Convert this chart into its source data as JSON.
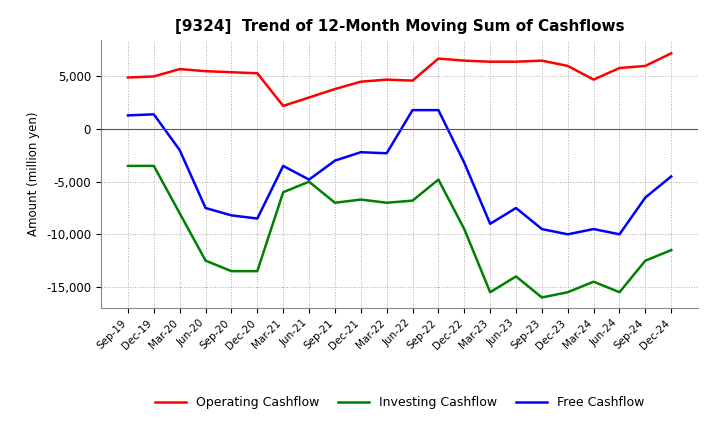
{
  "title": "[9324]  Trend of 12-Month Moving Sum of Cashflows",
  "ylabel": "Amount (million yen)",
  "ylim": [
    -17000,
    8500
  ],
  "yticks": [
    -15000,
    -10000,
    -5000,
    0,
    5000
  ],
  "background_color": "#ffffff",
  "grid_color": "#aaaaaa",
  "x_labels": [
    "Sep-19",
    "Dec-19",
    "Mar-20",
    "Jun-20",
    "Sep-20",
    "Dec-20",
    "Mar-21",
    "Jun-21",
    "Sep-21",
    "Dec-21",
    "Mar-22",
    "Jun-22",
    "Sep-22",
    "Dec-22",
    "Mar-23",
    "Jun-23",
    "Sep-23",
    "Dec-23",
    "Mar-24",
    "Jun-24",
    "Sep-24",
    "Dec-24"
  ],
  "operating_cashflow": [
    4900,
    5000,
    5700,
    5500,
    5400,
    5300,
    2200,
    3000,
    3800,
    4500,
    4700,
    4600,
    6700,
    6500,
    6400,
    6400,
    6500,
    6000,
    4700,
    5800,
    6000,
    7200
  ],
  "investing_cashflow": [
    -3500,
    -3500,
    -8000,
    -12500,
    -13500,
    -13500,
    -6000,
    -5000,
    -7000,
    -6700,
    -7000,
    -6800,
    -4800,
    -9500,
    -15500,
    -14000,
    -16000,
    -15500,
    -14500,
    -15500,
    -12500,
    -11500
  ],
  "free_cashflow": [
    1300,
    1400,
    -2000,
    -7500,
    -8200,
    -8500,
    -3500,
    -4800,
    -3000,
    -2200,
    -2300,
    1800,
    1800,
    -3200,
    -9000,
    -7500,
    -9500,
    -10000,
    -9500,
    -10000,
    -6500,
    -4500
  ],
  "operating_color": "#ff0000",
  "investing_color": "#008000",
  "free_color": "#0000ff",
  "line_width": 1.8
}
